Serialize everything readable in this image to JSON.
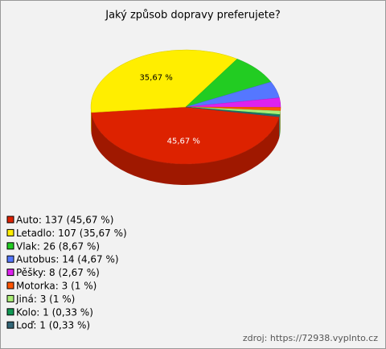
{
  "chart_data": {
    "type": "pie",
    "title": "Jaký způsob dopravy preferujete?",
    "categories": [
      "Auto: 137 (45,67 %)",
      "Letadlo: 107 (35,67 %)",
      "Vlak: 26 (8,67 %)",
      "Autobus: 14 (4,67 %)",
      "Pěšky: 8 (2,67 %)",
      "Motorka: 3 (1 %)",
      "Jiná: 3 (1 %)",
      "Kolo: 1 (0,33 %)",
      "Loď: 1 (0,33 %)"
    ],
    "values": [
      45.67,
      35.67,
      8.67,
      4.67,
      2.67,
      1,
      1,
      0.33,
      0.33
    ],
    "value_labels": [
      "45,67 %",
      "35,67 %",
      null,
      null,
      null,
      null,
      null,
      null,
      null
    ],
    "colors": [
      "#dd2200",
      "#ffee00",
      "#22cc22",
      "#5577ff",
      "#dd22ee",
      "#ff5500",
      "#aaee77",
      "#119955",
      "#336677"
    ],
    "source": "zdroj: https://72938.vyplnto.cz"
  }
}
